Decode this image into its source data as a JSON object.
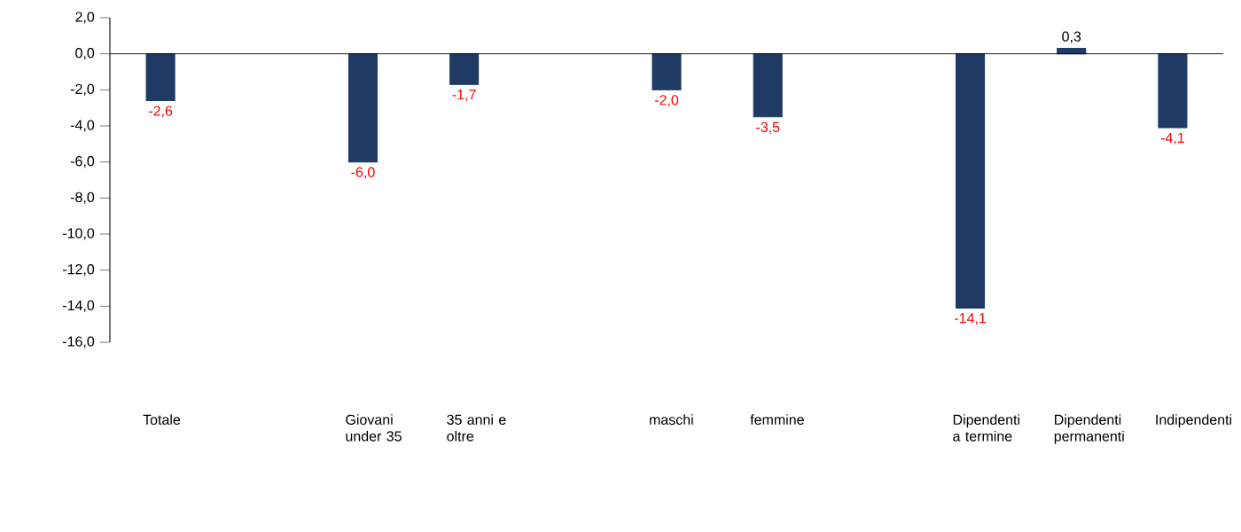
{
  "chart_data": {
    "type": "bar",
    "categories": [
      "Totale",
      null,
      "Giovani under 35",
      "35 anni e oltre",
      null,
      "maschi",
      "femmine",
      null,
      "Dipendenti a termine",
      "Dipendenti permanenti",
      "Indipendenti"
    ],
    "values": [
      -2.6,
      null,
      -6.0,
      -1.7,
      null,
      -2.0,
      -3.5,
      null,
      -14.1,
      0.3,
      -4.1
    ],
    "value_labels": [
      "-2,6",
      null,
      "-6,0",
      "-1,7",
      null,
      "-2,0",
      "-3,5",
      null,
      "-14,1",
      "0,3",
      "-4,1"
    ],
    "color": "#1f3b63",
    "ylim": [
      -16,
      2
    ],
    "yticks": [
      {
        "value": 2,
        "label": "2,0"
      },
      {
        "value": 0,
        "label": "0,0"
      },
      {
        "value": -2,
        "label": "-2,0"
      },
      {
        "value": -4,
        "label": "-4,0"
      },
      {
        "value": -6,
        "label": "-6,0"
      },
      {
        "value": -8,
        "label": "-8,0"
      },
      {
        "value": -10,
        "label": "-10,0"
      },
      {
        "value": -12,
        "label": "-12,0"
      },
      {
        "value": -14,
        "label": "-14,0"
      },
      {
        "value": -16,
        "label": "-16,0"
      }
    ],
    "line_style": "solid"
  }
}
